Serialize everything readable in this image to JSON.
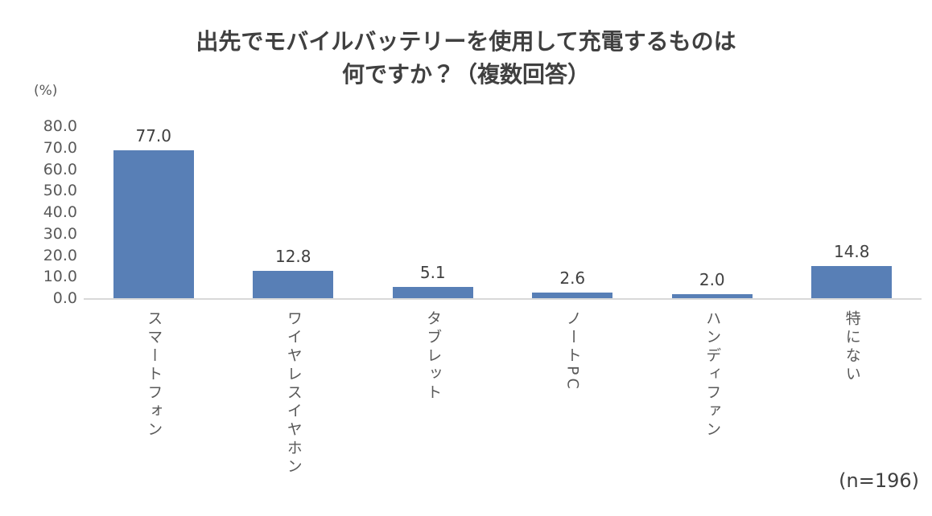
{
  "title": {
    "line1": "出先でモバイルバッテリーを使用して充電するものは",
    "line2": "何ですか？（複数回答）"
  },
  "axis_unit_label": "(%)",
  "sample_size_note": "(n=196)",
  "chart_data": {
    "type": "bar",
    "title": "出先でモバイルバッテリーを使用して充電するものは何ですか？（複数回答）",
    "categories": [
      "スマートフォン",
      "ワイヤレスイヤホン",
      "タブレット",
      "ノートPC",
      "ハンディファン",
      "特にない"
    ],
    "values": [
      77.0,
      12.8,
      5.1,
      2.6,
      2.0,
      14.8
    ],
    "value_labels": [
      "77.0",
      "12.8",
      "5.1",
      "2.6",
      "2.0",
      "14.8"
    ],
    "xlabel": "",
    "ylabel": "(%)",
    "ylim": [
      0,
      80
    ],
    "ytick_labels": [
      "80.0",
      "70.0",
      "60.0",
      "50.0",
      "40.0",
      "30.0",
      "20.0",
      "10.0",
      "0.0"
    ],
    "grid": false,
    "legend": false,
    "category_text_direction": "vertical",
    "bar_color": "#587fb6",
    "axis_line_color": "#d9d9d9",
    "sample_size": "(n=196)"
  }
}
